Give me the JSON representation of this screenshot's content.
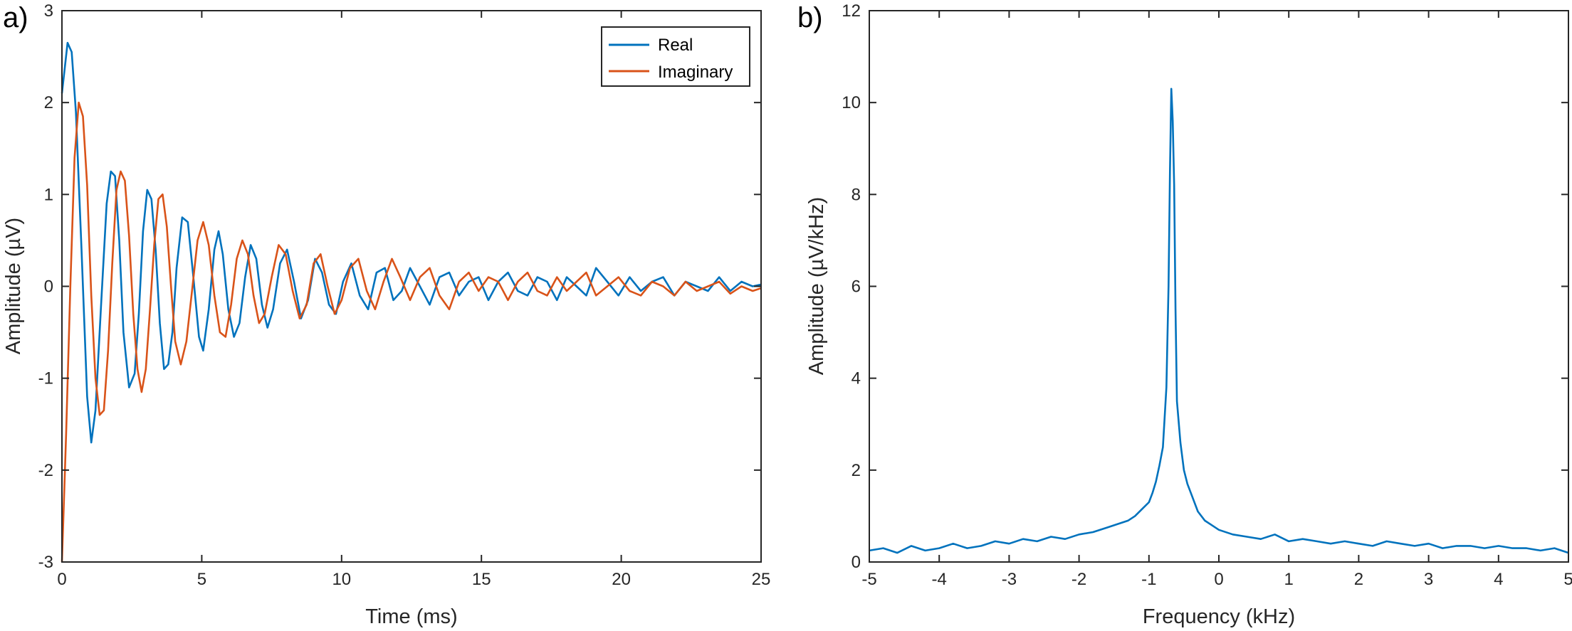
{
  "chart_data": [
    {
      "type": "line",
      "panel_label": "a)",
      "xlabel": "Time (ms)",
      "ylabel": "Amplitude (µV)",
      "xlim": [
        0,
        25
      ],
      "ylim": [
        -3,
        3
      ],
      "xticks": [
        0,
        5,
        10,
        15,
        20,
        25
      ],
      "yticks": [
        -3,
        -2,
        -1,
        0,
        1,
        2,
        3
      ],
      "legend_position": "top-right",
      "series": [
        {
          "name": "Real",
          "color": "#0072BD",
          "x": [
            0,
            0.2,
            0.35,
            0.5,
            0.7,
            0.9,
            1.05,
            1.2,
            1.4,
            1.6,
            1.75,
            1.9,
            2.05,
            2.2,
            2.4,
            2.6,
            2.75,
            2.9,
            3.05,
            3.2,
            3.35,
            3.5,
            3.65,
            3.8,
            3.95,
            4.1,
            4.3,
            4.5,
            4.7,
            4.9,
            5.05,
            5.25,
            5.45,
            5.6,
            5.75,
            5.95,
            6.15,
            6.35,
            6.55,
            6.75,
            6.95,
            7.15,
            7.35,
            7.55,
            7.8,
            8.05,
            8.3,
            8.55,
            8.8,
            9.05,
            9.3,
            9.55,
            9.8,
            10.05,
            10.35,
            10.65,
            10.95,
            11.25,
            11.55,
            11.85,
            12.15,
            12.45,
            12.8,
            13.15,
            13.5,
            13.85,
            14.2,
            14.55,
            14.9,
            15.25,
            15.6,
            15.95,
            16.3,
            16.65,
            17.0,
            17.35,
            17.7,
            18.05,
            18.4,
            18.75,
            19.1,
            19.5,
            19.9,
            20.3,
            20.7,
            21.1,
            21.5,
            21.9,
            22.3,
            22.7,
            23.1,
            23.5,
            23.9,
            24.3,
            24.7,
            25.0
          ],
          "y": [
            2.1,
            2.65,
            2.55,
            1.9,
            0.4,
            -1.2,
            -1.7,
            -1.35,
            -0.2,
            0.9,
            1.25,
            1.2,
            0.5,
            -0.5,
            -1.1,
            -0.95,
            -0.3,
            0.6,
            1.05,
            0.95,
            0.4,
            -0.4,
            -0.9,
            -0.85,
            -0.5,
            0.2,
            0.75,
            0.7,
            0.1,
            -0.55,
            -0.7,
            -0.25,
            0.4,
            0.6,
            0.35,
            -0.25,
            -0.55,
            -0.4,
            0.1,
            0.45,
            0.3,
            -0.2,
            -0.45,
            -0.25,
            0.25,
            0.4,
            0.05,
            -0.35,
            -0.15,
            0.3,
            0.15,
            -0.2,
            -0.3,
            0.05,
            0.25,
            -0.1,
            -0.25,
            0.15,
            0.2,
            -0.15,
            -0.05,
            0.2,
            0.0,
            -0.2,
            0.1,
            0.15,
            -0.1,
            0.05,
            0.1,
            -0.15,
            0.05,
            0.15,
            -0.05,
            -0.1,
            0.1,
            0.05,
            -0.15,
            0.1,
            0.0,
            -0.1,
            0.2,
            0.05,
            -0.1,
            0.1,
            -0.05,
            0.05,
            0.1,
            -0.1,
            0.05,
            0.0,
            -0.05,
            0.1,
            -0.05,
            0.05,
            0.0,
            0.02
          ]
        },
        {
          "name": "Imaginary",
          "color": "#D95319",
          "x": [
            0,
            0.15,
            0.3,
            0.45,
            0.6,
            0.75,
            0.9,
            1.05,
            1.2,
            1.35,
            1.5,
            1.65,
            1.8,
            1.95,
            2.1,
            2.25,
            2.4,
            2.55,
            2.7,
            2.85,
            3.0,
            3.15,
            3.3,
            3.45,
            3.6,
            3.75,
            3.9,
            4.05,
            4.25,
            4.45,
            4.65,
            4.85,
            5.05,
            5.25,
            5.45,
            5.65,
            5.85,
            6.05,
            6.25,
            6.45,
            6.65,
            6.85,
            7.05,
            7.25,
            7.5,
            7.75,
            8.0,
            8.25,
            8.5,
            8.75,
            9.0,
            9.25,
            9.5,
            9.75,
            10.0,
            10.3,
            10.6,
            10.9,
            11.2,
            11.5,
            11.8,
            12.1,
            12.45,
            12.8,
            13.15,
            13.5,
            13.85,
            14.2,
            14.55,
            14.9,
            15.25,
            15.6,
            15.95,
            16.3,
            16.65,
            17.0,
            17.35,
            17.7,
            18.05,
            18.4,
            18.75,
            19.1,
            19.5,
            19.9,
            20.3,
            20.7,
            21.1,
            21.5,
            21.9,
            22.3,
            22.7,
            23.1,
            23.5,
            23.9,
            24.3,
            24.7,
            25.0
          ],
          "y": [
            -3.0,
            -1.6,
            0.0,
            1.4,
            2.0,
            1.85,
            1.1,
            -0.1,
            -1.0,
            -1.4,
            -1.35,
            -0.7,
            0.25,
            1.05,
            1.25,
            1.15,
            0.55,
            -0.3,
            -0.9,
            -1.15,
            -0.9,
            -0.25,
            0.45,
            0.95,
            1.0,
            0.65,
            0.0,
            -0.6,
            -0.85,
            -0.6,
            -0.05,
            0.5,
            0.7,
            0.45,
            -0.1,
            -0.5,
            -0.55,
            -0.2,
            0.3,
            0.5,
            0.35,
            -0.1,
            -0.4,
            -0.3,
            0.1,
            0.45,
            0.35,
            -0.05,
            -0.35,
            -0.2,
            0.25,
            0.35,
            0.0,
            -0.3,
            -0.15,
            0.2,
            0.3,
            -0.05,
            -0.25,
            0.05,
            0.3,
            0.1,
            -0.15,
            0.1,
            0.2,
            -0.1,
            -0.25,
            0.05,
            0.15,
            -0.05,
            0.1,
            0.05,
            -0.15,
            0.05,
            0.15,
            -0.05,
            -0.1,
            0.1,
            -0.05,
            0.05,
            0.15,
            -0.1,
            0.0,
            0.1,
            -0.05,
            -0.1,
            0.05,
            0.0,
            -0.1,
            0.05,
            -0.05,
            0.0,
            0.05,
            -0.08,
            0.0,
            -0.05,
            -0.02
          ]
        }
      ]
    },
    {
      "type": "line",
      "panel_label": "b)",
      "xlabel": "Frequency (kHz)",
      "ylabel": "Amplitude (µV/kHz)",
      "xlim": [
        -5,
        5
      ],
      "ylim": [
        0,
        12
      ],
      "xticks": [
        -5,
        -4,
        -3,
        -2,
        -1,
        0,
        1,
        2,
        3,
        4,
        5
      ],
      "yticks": [
        0,
        2,
        4,
        6,
        8,
        10,
        12
      ],
      "series": [
        {
          "color": "#0072BD",
          "x": [
            -5.0,
            -4.8,
            -4.6,
            -4.4,
            -4.2,
            -4.0,
            -3.8,
            -3.6,
            -3.4,
            -3.2,
            -3.0,
            -2.8,
            -2.6,
            -2.4,
            -2.2,
            -2.0,
            -1.8,
            -1.6,
            -1.4,
            -1.3,
            -1.2,
            -1.1,
            -1.0,
            -0.95,
            -0.9,
            -0.85,
            -0.8,
            -0.75,
            -0.72,
            -0.7,
            -0.68,
            -0.66,
            -0.64,
            -0.62,
            -0.6,
            -0.55,
            -0.5,
            -0.45,
            -0.4,
            -0.3,
            -0.2,
            -0.1,
            0.0,
            0.2,
            0.4,
            0.6,
            0.8,
            1.0,
            1.2,
            1.4,
            1.6,
            1.8,
            2.0,
            2.2,
            2.4,
            2.6,
            2.8,
            3.0,
            3.2,
            3.4,
            3.6,
            3.8,
            4.0,
            4.2,
            4.4,
            4.6,
            4.8,
            5.0
          ],
          "y": [
            0.25,
            0.3,
            0.2,
            0.35,
            0.25,
            0.3,
            0.4,
            0.3,
            0.35,
            0.45,
            0.4,
            0.5,
            0.45,
            0.55,
            0.5,
            0.6,
            0.65,
            0.75,
            0.85,
            0.9,
            1.0,
            1.15,
            1.3,
            1.5,
            1.75,
            2.1,
            2.5,
            3.8,
            6.0,
            8.5,
            10.3,
            9.6,
            8.2,
            5.5,
            3.5,
            2.6,
            2.0,
            1.7,
            1.5,
            1.1,
            0.9,
            0.8,
            0.7,
            0.6,
            0.55,
            0.5,
            0.6,
            0.45,
            0.5,
            0.45,
            0.4,
            0.45,
            0.4,
            0.35,
            0.45,
            0.4,
            0.35,
            0.4,
            0.3,
            0.35,
            0.35,
            0.3,
            0.35,
            0.3,
            0.3,
            0.25,
            0.3,
            0.2
          ]
        }
      ]
    }
  ]
}
